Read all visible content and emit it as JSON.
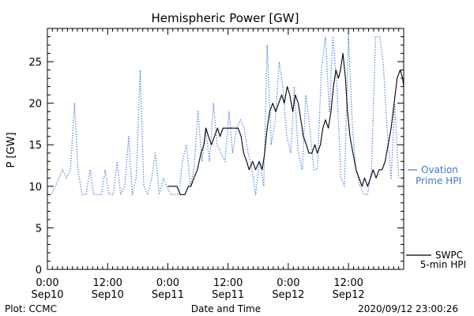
{
  "chart_data": {
    "type": "line",
    "title": "Hemispheric Power [GW]",
    "xlabel": "Date and Time",
    "ylabel": "P [GW]",
    "ylim": [
      0,
      29
    ],
    "xlim_hours": [
      0,
      71
    ],
    "grid": false,
    "x_ticks": [
      {
        "hours": 0,
        "time": "0:00",
        "date": "Sep10"
      },
      {
        "hours": 12,
        "time": "12:00",
        "date": "Sep10"
      },
      {
        "hours": 24,
        "time": "0:00",
        "date": "Sep11"
      },
      {
        "hours": 36,
        "time": "12:00",
        "date": "Sep11"
      },
      {
        "hours": 48,
        "time": "0:00",
        "date": "Sep12"
      },
      {
        "hours": 60,
        "time": "12:00",
        "date": "Sep12"
      }
    ],
    "y_ticks": [
      0,
      5,
      10,
      15,
      20,
      25
    ],
    "series": [
      {
        "name_lines": [
          "Ovation",
          "Prime HPI"
        ],
        "color": "#3a7bd5",
        "style": "dotted",
        "points": [
          [
            0,
            9
          ],
          [
            0.8,
            9
          ],
          [
            1.6,
            10
          ],
          [
            2.3,
            11
          ],
          [
            3,
            12
          ],
          [
            3.8,
            11
          ],
          [
            4.6,
            12
          ],
          [
            5.4,
            20
          ],
          [
            6.1,
            12
          ],
          [
            6.9,
            9
          ],
          [
            7.7,
            9
          ],
          [
            8.5,
            12
          ],
          [
            9.2,
            9
          ],
          [
            10,
            9
          ],
          [
            10.8,
            9
          ],
          [
            11.5,
            12
          ],
          [
            12.3,
            9
          ],
          [
            13.1,
            9
          ],
          [
            13.9,
            13
          ],
          [
            14.6,
            9
          ],
          [
            15.4,
            10
          ],
          [
            16.2,
            16
          ],
          [
            16.9,
            9
          ],
          [
            17.7,
            11
          ],
          [
            18.5,
            24
          ],
          [
            19.2,
            10
          ],
          [
            20,
            9
          ],
          [
            20.8,
            11
          ],
          [
            21.5,
            14
          ],
          [
            22.3,
            9
          ],
          [
            23.1,
            11
          ],
          [
            23.8,
            10
          ],
          [
            24.6,
            9
          ],
          [
            25.4,
            9
          ],
          [
            26.2,
            9
          ],
          [
            26.9,
            13
          ],
          [
            27.7,
            15
          ],
          [
            28.5,
            10
          ],
          [
            29.2,
            12
          ],
          [
            30,
            19
          ],
          [
            30.8,
            13
          ],
          [
            31.5,
            17
          ],
          [
            32.3,
            13
          ],
          [
            33.1,
            20
          ],
          [
            33.8,
            15
          ],
          [
            34.6,
            14
          ],
          [
            35.4,
            13
          ],
          [
            36.2,
            19
          ],
          [
            36.9,
            14
          ],
          [
            37.7,
            17
          ],
          [
            38.5,
            18
          ],
          [
            39.2,
            17
          ],
          [
            40,
            14
          ],
          [
            40.8,
            12
          ],
          [
            41.5,
            9
          ],
          [
            42.3,
            13
          ],
          [
            43.1,
            10
          ],
          [
            43.8,
            27
          ],
          [
            44.6,
            15
          ],
          [
            45.4,
            18
          ],
          [
            46.2,
            25
          ],
          [
            46.9,
            22
          ],
          [
            47.7,
            16
          ],
          [
            48.5,
            14
          ],
          [
            49.2,
            22
          ],
          [
            50,
            14
          ],
          [
            50.8,
            12
          ],
          [
            51.5,
            21
          ],
          [
            52.3,
            17
          ],
          [
            53.1,
            12
          ],
          [
            53.8,
            12
          ],
          [
            54.6,
            24
          ],
          [
            55.4,
            28
          ],
          [
            56.2,
            19
          ],
          [
            56.9,
            28
          ],
          [
            57.7,
            22
          ],
          [
            58.5,
            11
          ],
          [
            59.2,
            10
          ],
          [
            60,
            28
          ],
          [
            60.8,
            17
          ],
          [
            61.5,
            12
          ],
          [
            62.3,
            10
          ],
          [
            63.1,
            9
          ],
          [
            63.8,
            9
          ],
          [
            64.6,
            12
          ],
          [
            65.4,
            28
          ],
          [
            66.2,
            28
          ],
          [
            66.9,
            25
          ],
          [
            67.7,
            17
          ],
          [
            68.5,
            11
          ],
          [
            69.2,
            20
          ],
          [
            70,
            11
          ]
        ]
      },
      {
        "name_lines": [
          "SWPC",
          "5-min HPI"
        ],
        "color": "#000000",
        "style": "solid",
        "points": [
          [
            24,
            10
          ],
          [
            25.8,
            10
          ],
          [
            26.5,
            9
          ],
          [
            27.4,
            9
          ],
          [
            28.1,
            10
          ],
          [
            28.6,
            10
          ],
          [
            29.2,
            11
          ],
          [
            29.9,
            12
          ],
          [
            30.6,
            14
          ],
          [
            31.2,
            15
          ],
          [
            31.6,
            17
          ],
          [
            32.1,
            16
          ],
          [
            32.7,
            15
          ],
          [
            33.3,
            16
          ],
          [
            33.9,
            17
          ],
          [
            34.4,
            16
          ],
          [
            35,
            17
          ],
          [
            35.7,
            17
          ],
          [
            36.5,
            17
          ],
          [
            37.3,
            17
          ],
          [
            38,
            17
          ],
          [
            38.6,
            16
          ],
          [
            39.1,
            14
          ],
          [
            39.7,
            13
          ],
          [
            40.2,
            12
          ],
          [
            40.9,
            13
          ],
          [
            41.5,
            12
          ],
          [
            42.2,
            13
          ],
          [
            42.8,
            12
          ],
          [
            43.3,
            14
          ],
          [
            43.8,
            17
          ],
          [
            44.3,
            19
          ],
          [
            44.9,
            20
          ],
          [
            45.5,
            19
          ],
          [
            46.1,
            20
          ],
          [
            46.7,
            21
          ],
          [
            47.2,
            20
          ],
          [
            47.8,
            22
          ],
          [
            48.3,
            21
          ],
          [
            48.9,
            19
          ],
          [
            49.4,
            21
          ],
          [
            50,
            20
          ],
          [
            50.5,
            18
          ],
          [
            51,
            16
          ],
          [
            51.6,
            15
          ],
          [
            52.1,
            14
          ],
          [
            52.7,
            14
          ],
          [
            53.3,
            15
          ],
          [
            53.8,
            14
          ],
          [
            54.4,
            15
          ],
          [
            54.9,
            17
          ],
          [
            55.4,
            18
          ],
          [
            56,
            17
          ],
          [
            56.5,
            19
          ],
          [
            57,
            22
          ],
          [
            57.5,
            24
          ],
          [
            58,
            23
          ],
          [
            58.4,
            24
          ],
          [
            58.9,
            26
          ],
          [
            59.4,
            23
          ],
          [
            59.8,
            19
          ],
          [
            60.3,
            16
          ],
          [
            60.9,
            14
          ],
          [
            61.5,
            12
          ],
          [
            62.1,
            11
          ],
          [
            62.7,
            10
          ],
          [
            63.2,
            11
          ],
          [
            63.8,
            10
          ],
          [
            64.4,
            11
          ],
          [
            64.9,
            12
          ],
          [
            65.5,
            11
          ],
          [
            66.1,
            12
          ],
          [
            66.7,
            12
          ],
          [
            67.3,
            13
          ],
          [
            67.9,
            15
          ],
          [
            68.5,
            17
          ],
          [
            69.1,
            20
          ],
          [
            69.7,
            23
          ],
          [
            70.3,
            24
          ],
          [
            70.8,
            23
          ],
          [
            71,
            22
          ]
        ]
      }
    ],
    "footer_left": "Plot: CCMC",
    "footer_right": "2020/09/12 23:00:26"
  }
}
